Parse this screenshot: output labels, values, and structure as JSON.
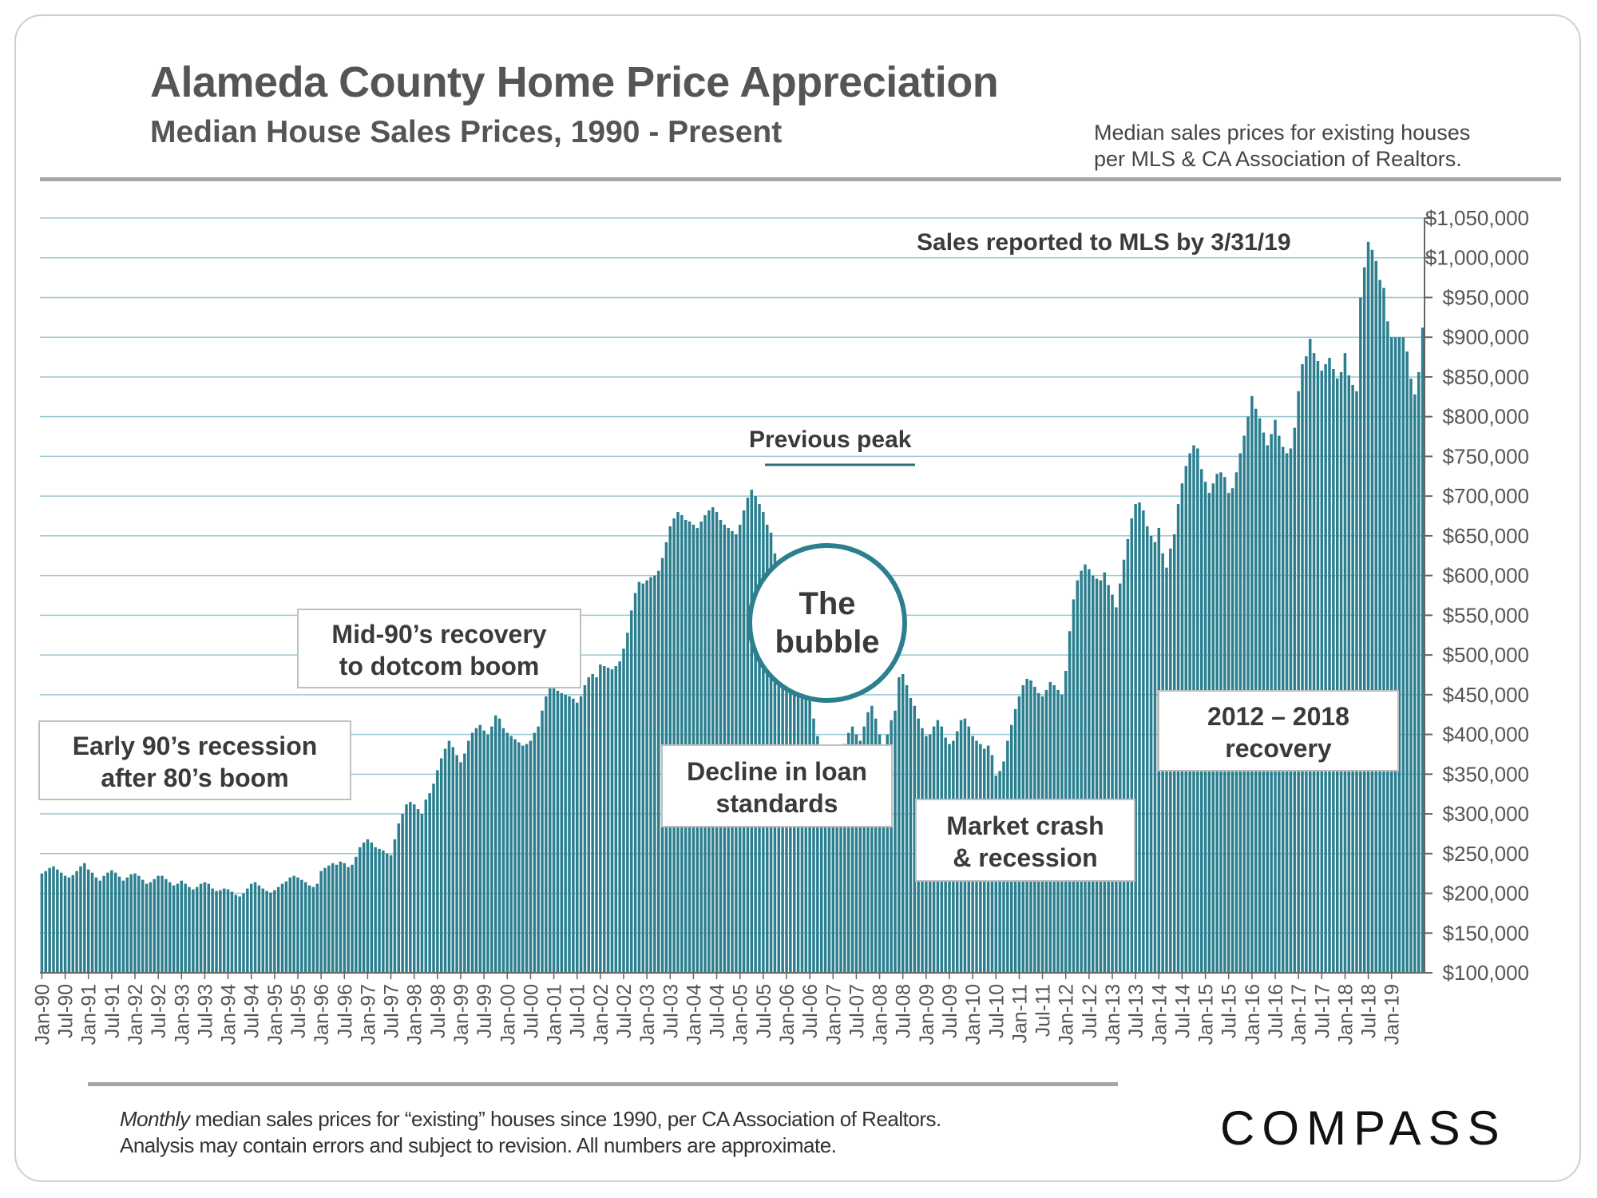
{
  "header": {
    "title": "Alameda County Home Price Appreciation",
    "subtitle": "Median House Sales Prices, 1990 - Present",
    "source_line1": "Median sales prices for existing houses",
    "source_line2": "per MLS & CA Association of Realtors."
  },
  "annotations": {
    "sales_reported": "Sales reported to MLS by 3/31/19",
    "previous_peak": "Previous peak",
    "bubble_line1": "The",
    "bubble_line2": "bubble",
    "early90s_line1": "Early 90’s recession",
    "early90s_line2": "after 80’s boom",
    "mid90s_line1": "Mid-90’s recovery",
    "mid90s_line2": "to dotcom boom",
    "decline_line1": "Decline in loan",
    "decline_line2": "standards",
    "crash_line1": "Market crash",
    "crash_line2": "& recession",
    "recovery_line1": "2012 – 2018",
    "recovery_line2": "recovery"
  },
  "footer": {
    "note_italic": "Monthly",
    "note_line1_rest": " median sales prices for “existing” houses since 1990, per CA Association of Realtors.",
    "note_line2": "Analysis may contain errors and subject to revision. All numbers are approximate.",
    "logo": "COMPASS"
  },
  "colors": {
    "bar": "#2b7f8f",
    "grid": "#9cc7d3",
    "text": "#555555"
  },
  "chart_data": {
    "type": "bar",
    "title": "Alameda County Home Price Appreciation",
    "subtitle": "Median House Sales Prices, 1990 - Present",
    "xlabel": "",
    "ylabel": "",
    "ylim": [
      100000,
      1050000
    ],
    "y_ticks": [
      "$100,000",
      "$150,000",
      "$200,000",
      "$250,000",
      "$300,000",
      "$350,000",
      "$400,000",
      "$450,000",
      "$500,000",
      "$550,000",
      "$600,000",
      "$650,000",
      "$700,000",
      "$750,000",
      "$800,000",
      "$850,000",
      "$900,000",
      "$950,000",
      "$1,000,000",
      "$1,050,000"
    ],
    "x_ticks": [
      "Jan-90",
      "Jul-90",
      "Jan-91",
      "Jul-91",
      "Jan-92",
      "Jul-92",
      "Jan-93",
      "Jul-93",
      "Jan-94",
      "Jul-94",
      "Jan-95",
      "Jul-95",
      "Jan-96",
      "Jul-96",
      "Jan-97",
      "Jul-97",
      "Jan-98",
      "Jul-98",
      "Jan-99",
      "Jul-99",
      "Jan-00",
      "Jul-00",
      "Jan-01",
      "Jul-01",
      "Jan-02",
      "Jul-02",
      "Jan-03",
      "Jul-03",
      "Jan-04",
      "Jul-04",
      "Jan-05",
      "Jul-05",
      "Jan-06",
      "Jul-06",
      "Jan-07",
      "Jul-07",
      "Jan-08",
      "Jul-08",
      "Jan-09",
      "Jul-09",
      "Jan-10",
      "Jul-10",
      "Jan-11",
      "Jul-11",
      "Jan-12",
      "Jul-12",
      "Jan-13",
      "Jul-13",
      "Jan-14",
      "Jul-14",
      "Jan-15",
      "Jul-15",
      "Jan-16",
      "Jul-16",
      "Jan-17",
      "Jul-17",
      "Jan-18",
      "Jul-18",
      "Jan-19"
    ],
    "x_start": "Jan-90",
    "frequency": "monthly",
    "grid": true,
    "y_axis_position": "right",
    "values": [
      225000,
      228000,
      232000,
      234000,
      230000,
      226000,
      222000,
      220000,
      223000,
      228000,
      234000,
      238000,
      230000,
      226000,
      220000,
      216000,
      222000,
      226000,
      229000,
      226000,
      221000,
      216000,
      220000,
      224000,
      225000,
      222000,
      217000,
      212000,
      214000,
      218000,
      222000,
      222000,
      218000,
      214000,
      210000,
      212000,
      216000,
      212000,
      208000,
      205000,
      208000,
      212000,
      214000,
      212000,
      206000,
      203000,
      204000,
      206000,
      205000,
      202000,
      198000,
      196000,
      200000,
      206000,
      212000,
      214000,
      210000,
      206000,
      203000,
      201000,
      204000,
      208000,
      212000,
      215000,
      220000,
      222000,
      220000,
      217000,
      214000,
      210000,
      208000,
      212000,
      228000,
      232000,
      235000,
      238000,
      236000,
      240000,
      238000,
      233000,
      236000,
      246000,
      258000,
      264000,
      268000,
      264000,
      258000,
      256000,
      254000,
      250000,
      248000,
      268000,
      288000,
      300000,
      312000,
      315000,
      312000,
      306000,
      300000,
      318000,
      326000,
      338000,
      355000,
      370000,
      382000,
      392000,
      384000,
      374000,
      365000,
      376000,
      392000,
      402000,
      408000,
      412000,
      405000,
      400000,
      410000,
      424000,
      420000,
      408000,
      402000,
      398000,
      394000,
      390000,
      386000,
      388000,
      392000,
      402000,
      410000,
      430000,
      448000,
      466000,
      462000,
      455000,
      452000,
      450000,
      448000,
      445000,
      440000,
      448000,
      462000,
      472000,
      476000,
      472000,
      488000,
      486000,
      484000,
      482000,
      486000,
      492000,
      508000,
      528000,
      556000,
      578000,
      592000,
      590000,
      594000,
      598000,
      600000,
      606000,
      622000,
      642000,
      662000,
      672000,
      680000,
      676000,
      670000,
      668000,
      664000,
      660000,
      668000,
      676000,
      682000,
      686000,
      680000,
      670000,
      664000,
      660000,
      656000,
      652000,
      664000,
      682000,
      698000,
      708000,
      700000,
      690000,
      680000,
      664000,
      654000,
      628000,
      604000,
      582000,
      560000,
      540000,
      525000,
      512000,
      494000,
      470000,
      446000,
      420000,
      398000,
      378000,
      360000,
      325000,
      318000,
      330000,
      360000,
      388000,
      402000,
      410000,
      400000,
      392000,
      410000,
      428000,
      436000,
      420000,
      400000,
      384000,
      400000,
      418000,
      430000,
      472000,
      476000,
      462000,
      446000,
      436000,
      420000,
      408000,
      398000,
      400000,
      410000,
      418000,
      410000,
      396000,
      388000,
      392000,
      404000,
      418000,
      420000,
      410000,
      398000,
      392000,
      388000,
      382000,
      386000,
      374000,
      348000,
      354000,
      366000,
      392000,
      412000,
      432000,
      448000,
      462000,
      470000,
      468000,
      460000,
      452000,
      448000,
      456000,
      466000,
      462000,
      456000,
      450000,
      480000,
      530000,
      570000,
      594000,
      606000,
      614000,
      608000,
      600000,
      596000,
      594000,
      604000,
      588000,
      576000,
      560000,
      590000,
      620000,
      646000,
      672000,
      690000,
      692000,
      682000,
      662000,
      650000,
      642000,
      660000,
      628000,
      610000,
      634000,
      652000,
      690000,
      716000,
      738000,
      754000,
      764000,
      760000,
      734000,
      718000,
      704000,
      716000,
      728000,
      730000,
      724000,
      704000,
      710000,
      730000,
      754000,
      776000,
      800000,
      826000,
      810000,
      798000,
      780000,
      764000,
      778000,
      796000,
      776000,
      762000,
      754000,
      760000,
      786000,
      832000,
      866000,
      876000,
      898000,
      880000,
      870000,
      858000,
      866000,
      874000,
      860000,
      848000,
      856000,
      880000,
      852000,
      840000,
      832000,
      950000,
      988000,
      1020000,
      1010000,
      996000,
      972000,
      962000,
      920000,
      900000,
      900000,
      900000,
      900000,
      882000,
      848000,
      828000,
      856000,
      912000
    ]
  }
}
